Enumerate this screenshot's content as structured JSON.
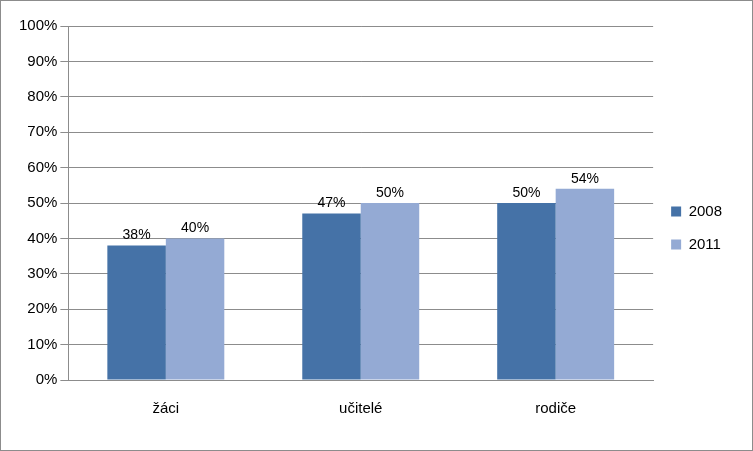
{
  "chart_data": {
    "type": "bar",
    "categories": [
      "žáci",
      "učitelé",
      "rodiče"
    ],
    "series": [
      {
        "name": "2008",
        "color": "#4572a7",
        "values": [
          38,
          47,
          50
        ],
        "value_labels": [
          "38%",
          "47%",
          "50%"
        ]
      },
      {
        "name": "2011",
        "color": "#94aad4",
        "values": [
          40,
          50,
          54
        ],
        "value_labels": [
          "40%",
          "50%",
          "54%"
        ]
      }
    ],
    "ylim": [
      0,
      100
    ],
    "yticks": [
      {
        "value": 0,
        "label": "0%"
      },
      {
        "value": 10,
        "label": "10%"
      },
      {
        "value": 20,
        "label": "20%"
      },
      {
        "value": 30,
        "label": "30%"
      },
      {
        "value": 40,
        "label": "40%"
      },
      {
        "value": 50,
        "label": "50%"
      },
      {
        "value": 60,
        "label": "60%"
      },
      {
        "value": 70,
        "label": "70%"
      },
      {
        "value": 80,
        "label": "80%"
      },
      {
        "value": 90,
        "label": "90%"
      },
      {
        "value": 100,
        "label": "100%"
      }
    ],
    "grid": true,
    "legend": "right",
    "data_labels": true
  }
}
